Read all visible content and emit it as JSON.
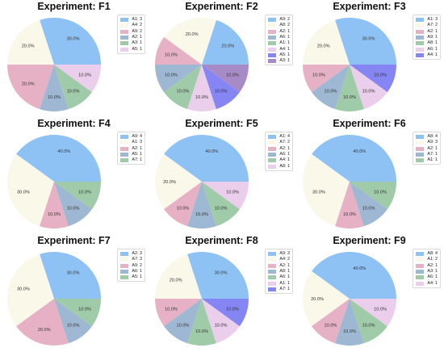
{
  "colors": {
    "blue": "#8fc2f4",
    "pink": "#e6b1c4",
    "cream": "#faf8e9",
    "steel": "#9eb8d3",
    "green": "#9fcba9",
    "lilac": "#ebcdec",
    "violet": "#8585f4",
    "purple": "#a78bc7"
  },
  "chart_data": [
    {
      "type": "pie",
      "title": "Experiment: F1",
      "legend_position": "top-right",
      "legend": [
        "A1: 3",
        "A4: 2",
        "A9: 2",
        "A2: 1",
        "A3: 1",
        "A5: 1"
      ],
      "slices": [
        {
          "label": "30.0%",
          "value": 30,
          "color": "blue"
        },
        {
          "label": "20.0%",
          "value": 20,
          "color": "cream"
        },
        {
          "label": "20.0%",
          "value": 20,
          "color": "pink"
        },
        {
          "label": "10.0%",
          "value": 10,
          "color": "steel"
        },
        {
          "label": "10.0%",
          "value": 10,
          "color": "green"
        },
        {
          "label": "10.0%",
          "value": 10,
          "color": "lilac"
        }
      ]
    },
    {
      "type": "pie",
      "title": "Experiment: F2",
      "legend_position": "top-right",
      "legend": [
        "A9: 2",
        "A8: 2",
        "A2: 1",
        "A6: 1",
        "A1: 1",
        "A4: 1",
        "A5: 1",
        "A3: 1"
      ],
      "slices": [
        {
          "label": "20.0%",
          "value": 20,
          "color": "blue"
        },
        {
          "label": "20.0%",
          "value": 20,
          "color": "cream"
        },
        {
          "label": "10.0%",
          "value": 10,
          "color": "pink"
        },
        {
          "label": "10.0%",
          "value": 10,
          "color": "steel"
        },
        {
          "label": "10.0%",
          "value": 10,
          "color": "green"
        },
        {
          "label": "10.0%",
          "value": 10,
          "color": "lilac"
        },
        {
          "label": "10.0%",
          "value": 10,
          "color": "violet"
        },
        {
          "label": "10.0%",
          "value": 10,
          "color": "purple"
        }
      ]
    },
    {
      "type": "pie",
      "title": "Experiment: F3",
      "legend_position": "top-right",
      "legend": [
        "A1: 3",
        "A7: 2",
        "A2: 1",
        "A9: 1",
        "A8: 1",
        "A6: 1",
        "A4: 1"
      ],
      "slices": [
        {
          "label": "30.0%",
          "value": 30,
          "color": "blue"
        },
        {
          "label": "20.0%",
          "value": 20,
          "color": "cream"
        },
        {
          "label": "10.0%",
          "value": 10,
          "color": "pink"
        },
        {
          "label": "10.0%",
          "value": 10,
          "color": "steel"
        },
        {
          "label": "10.0%",
          "value": 10,
          "color": "green"
        },
        {
          "label": "10.0%",
          "value": 10,
          "color": "lilac"
        },
        {
          "label": "10.0%",
          "value": 10,
          "color": "violet"
        }
      ]
    },
    {
      "type": "pie",
      "title": "Experiment: F4",
      "legend_position": "top-right",
      "legend": [
        "A9: 4",
        "A1: 3",
        "A2: 1",
        "A5: 1",
        "A7: 1"
      ],
      "slices": [
        {
          "label": "40.0%",
          "value": 40,
          "color": "blue"
        },
        {
          "label": "30.0%",
          "value": 30,
          "color": "cream"
        },
        {
          "label": "10.0%",
          "value": 10,
          "color": "pink"
        },
        {
          "label": "10.0%",
          "value": 10,
          "color": "steel"
        },
        {
          "label": "10.0%",
          "value": 10,
          "color": "green"
        }
      ]
    },
    {
      "type": "pie",
      "title": "Experiment: F5",
      "legend_position": "top-right",
      "legend": [
        "A1: 4",
        "A7: 2",
        "A2: 1",
        "A6: 1",
        "A4: 1",
        "A8: 1"
      ],
      "slices": [
        {
          "label": "40.0%",
          "value": 40,
          "color": "blue"
        },
        {
          "label": "20.0%",
          "value": 20,
          "color": "cream"
        },
        {
          "label": "10.0%",
          "value": 10,
          "color": "pink"
        },
        {
          "label": "10.0%",
          "value": 10,
          "color": "steel"
        },
        {
          "label": "10.0%",
          "value": 10,
          "color": "green"
        },
        {
          "label": "10.0%",
          "value": 10,
          "color": "lilac"
        }
      ]
    },
    {
      "type": "pie",
      "title": "Experiment: F6",
      "legend_position": "top-right",
      "legend": [
        "A8: 4",
        "A9: 3",
        "A2: 1",
        "A7: 1",
        "A1: 1"
      ],
      "slices": [
        {
          "label": "40.0%",
          "value": 40,
          "color": "blue"
        },
        {
          "label": "30.0%",
          "value": 30,
          "color": "cream"
        },
        {
          "label": "10.0%",
          "value": 10,
          "color": "pink"
        },
        {
          "label": "10.0%",
          "value": 10,
          "color": "steel"
        },
        {
          "label": "10.0%",
          "value": 10,
          "color": "green"
        }
      ]
    },
    {
      "type": "pie",
      "title": "Experiment: F7",
      "legend_position": "top-right",
      "legend": [
        "A2: 3",
        "A7: 3",
        "A9: 2",
        "A6: 1",
        "A5: 1"
      ],
      "slices": [
        {
          "label": "30.0%",
          "value": 30,
          "color": "blue"
        },
        {
          "label": "30.0%",
          "value": 30,
          "color": "cream"
        },
        {
          "label": "20.0%",
          "value": 20,
          "color": "pink"
        },
        {
          "label": "10.0%",
          "value": 10,
          "color": "steel"
        },
        {
          "label": "10.0%",
          "value": 10,
          "color": "green"
        }
      ]
    },
    {
      "type": "pie",
      "title": "Experiment: F8",
      "legend_position": "top-right",
      "legend": [
        "A9: 3",
        "A4: 2",
        "A2: 1",
        "A8: 1",
        "A6: 1",
        "A1: 1",
        "A7: 1"
      ],
      "slices": [
        {
          "label": "30.0%",
          "value": 30,
          "color": "blue"
        },
        {
          "label": "20.0%",
          "value": 20,
          "color": "cream"
        },
        {
          "label": "10.0%",
          "value": 10,
          "color": "pink"
        },
        {
          "label": "10.0%",
          "value": 10,
          "color": "steel"
        },
        {
          "label": "10.0%",
          "value": 10,
          "color": "green"
        },
        {
          "label": "10.0%",
          "value": 10,
          "color": "lilac"
        },
        {
          "label": "10.0%",
          "value": 10,
          "color": "violet"
        }
      ]
    },
    {
      "type": "pie",
      "title": "Experiment: F9",
      "legend_position": "top-right",
      "legend": [
        "A8: 4",
        "A1: 2",
        "A2: 1",
        "A3: 1",
        "A6: 1",
        "A4: 1"
      ],
      "slices": [
        {
          "label": "40.0%",
          "value": 40,
          "color": "blue"
        },
        {
          "label": "20.0%",
          "value": 20,
          "color": "cream"
        },
        {
          "label": "10.0%",
          "value": 10,
          "color": "pink"
        },
        {
          "label": "10.0%",
          "value": 10,
          "color": "steel"
        },
        {
          "label": "10.0%",
          "value": 10,
          "color": "green"
        },
        {
          "label": "10.0%",
          "value": 10,
          "color": "lilac"
        }
      ]
    }
  ]
}
